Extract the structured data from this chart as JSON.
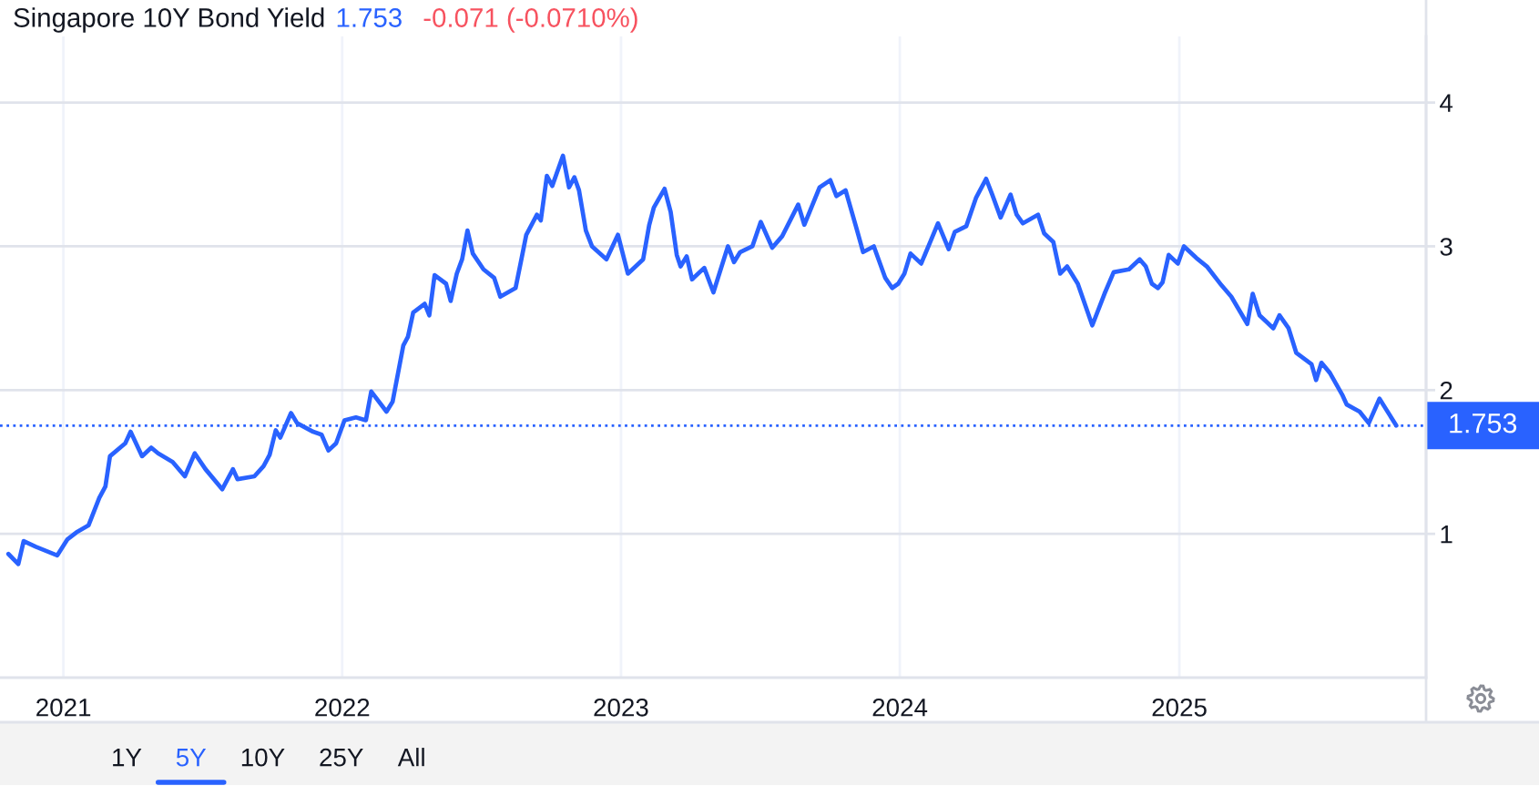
{
  "chart_data": {
    "type": "line",
    "title": "Singapore 10Y Bond Yield",
    "annotations": [
      "1.753",
      "-0.071 (-0.0710%)",
      "1Y",
      "5Y",
      "10Y",
      "25Y",
      "All"
    ],
    "x": [
      "2020-10-21",
      "2020-11-03",
      "2020-11-10",
      "2020-11-26",
      "2020-12-24",
      "2021-01-06",
      "2021-01-18",
      "2021-02-03",
      "2021-02-17",
      "2021-02-25",
      "2021-03-03",
      "2021-03-23",
      "2021-03-30",
      "2021-04-14",
      "2021-04-26",
      "2021-05-05",
      "2021-05-24",
      "2021-06-09",
      "2021-06-22",
      "2021-07-06",
      "2021-07-28",
      "2021-08-11",
      "2021-08-17",
      "2021-09-08",
      "2021-09-20",
      "2021-09-28",
      "2021-10-06",
      "2021-10-12",
      "2021-10-26",
      "2021-11-03",
      "2021-11-24",
      "2021-12-05",
      "2021-12-14",
      "2021-12-24",
      "2022-01-04",
      "2022-01-19",
      "2022-02-01",
      "2022-02-08",
      "2022-02-28",
      "2022-03-08",
      "2022-03-22",
      "2022-03-28",
      "2022-04-04",
      "2022-04-19",
      "2022-04-25",
      "2022-05-02",
      "2022-05-17",
      "2022-05-23",
      "2022-05-31",
      "2022-06-07",
      "2022-06-14",
      "2022-06-21",
      "2022-07-05",
      "2022-07-19",
      "2022-07-27",
      "2022-08-16",
      "2022-08-24",
      "2022-08-30",
      "2022-09-13",
      "2022-09-18",
      "2022-09-26",
      "2022-10-03",
      "2022-10-17",
      "2022-10-25",
      "2022-11-01",
      "2022-11-07",
      "2022-11-16",
      "2022-11-24",
      "2022-12-13",
      "2022-12-28",
      "2023-01-10",
      "2023-01-30",
      "2023-02-07",
      "2023-02-13",
      "2023-02-27",
      "2023-03-07",
      "2023-03-15",
      "2023-03-20",
      "2023-03-28",
      "2023-04-04",
      "2023-04-20",
      "2023-05-02",
      "2023-05-21",
      "2023-05-29",
      "2023-06-06",
      "2023-06-22",
      "2023-07-03",
      "2023-07-18",
      "2023-07-31",
      "2023-08-21",
      "2023-08-29",
      "2023-09-18",
      "2023-10-02",
      "2023-10-10",
      "2023-10-22",
      "2023-11-04",
      "2023-11-14",
      "2023-11-28",
      "2023-12-13",
      "2023-12-22",
      "2023-12-30",
      "2024-01-07",
      "2024-01-15",
      "2024-01-29",
      "2024-02-20",
      "2024-03-05",
      "2024-03-13",
      "2024-03-28",
      "2024-04-10",
      "2024-04-23",
      "2024-05-01",
      "2024-05-12",
      "2024-05-25",
      "2024-06-02",
      "2024-06-10",
      "2024-06-30",
      "2024-07-08",
      "2024-07-20",
      "2024-07-29",
      "2024-08-07",
      "2024-08-21",
      "2024-09-09",
      "2024-09-25",
      "2024-10-07",
      "2024-10-27",
      "2024-11-10",
      "2024-11-18",
      "2024-11-26",
      "2024-12-04",
      "2024-12-10",
      "2024-12-18",
      "2024-12-30",
      "2025-01-07",
      "2025-01-23",
      "2025-02-06",
      "2025-02-25",
      "2025-03-10",
      "2025-03-31",
      "2025-04-07",
      "2025-04-16",
      "2025-04-24",
      "2025-05-04",
      "2025-05-12",
      "2025-05-24",
      "2025-06-03",
      "2025-06-23",
      "2025-06-29",
      "2025-07-06",
      "2025-07-17",
      "2025-08-02",
      "2025-08-08",
      "2025-08-25",
      "2025-09-06",
      "2025-09-20",
      "2025-10-12"
    ],
    "series": [
      {
        "color": "#2962ff",
        "values": [
          0.86,
          0.79,
          0.95,
          0.91,
          0.85,
          0.96,
          1.01,
          1.06,
          1.25,
          1.33,
          1.54,
          1.63,
          1.71,
          1.54,
          1.6,
          1.56,
          1.5,
          1.4,
          1.56,
          1.45,
          1.31,
          1.45,
          1.38,
          1.4,
          1.47,
          1.55,
          1.72,
          1.67,
          1.84,
          1.77,
          1.71,
          1.69,
          1.58,
          1.63,
          1.79,
          1.81,
          1.79,
          1.99,
          1.85,
          1.92,
          2.31,
          2.37,
          2.54,
          2.6,
          2.52,
          2.8,
          2.74,
          2.62,
          2.81,
          2.91,
          3.11,
          2.95,
          2.84,
          2.78,
          2.65,
          2.71,
          2.92,
          3.08,
          3.22,
          3.18,
          3.49,
          3.42,
          3.63,
          3.41,
          3.48,
          3.39,
          3.11,
          3.0,
          2.91,
          3.08,
          2.81,
          2.91,
          3.15,
          3.27,
          3.4,
          3.24,
          2.94,
          2.86,
          2.93,
          2.77,
          2.85,
          2.68,
          3.0,
          2.89,
          2.96,
          3.0,
          3.17,
          2.99,
          3.07,
          3.29,
          3.15,
          3.41,
          3.46,
          3.35,
          3.39,
          3.15,
          2.96,
          3.0,
          2.78,
          2.71,
          2.74,
          2.81,
          2.95,
          2.88,
          3.16,
          2.98,
          3.1,
          3.14,
          3.34,
          3.47,
          3.36,
          3.2,
          3.36,
          3.22,
          3.16,
          3.22,
          3.09,
          3.03,
          2.81,
          2.86,
          2.74,
          2.45,
          2.67,
          2.82,
          2.84,
          2.91,
          2.86,
          2.74,
          2.71,
          2.75,
          2.94,
          2.88,
          3.0,
          2.92,
          2.86,
          2.73,
          2.65,
          2.46,
          2.67,
          2.52,
          2.48,
          2.43,
          2.52,
          2.43,
          2.26,
          2.18,
          2.07,
          2.19,
          2.12,
          1.97,
          1.9,
          1.85,
          1.77,
          1.94,
          1.753
        ]
      }
    ],
    "xlim": [
      "2020-10-10",
      "2025-11-20"
    ],
    "xticks": [
      "2021",
      "2022",
      "2023",
      "2024",
      "2025"
    ],
    "ylim": [
      0,
      4.46
    ],
    "yticks": [
      1,
      2,
      3,
      4
    ],
    "ref_lines": [
      {
        "axis": "y",
        "value": 1.753,
        "label": "1.753",
        "color": "#2962ff",
        "line_style": "dotted"
      }
    ],
    "grid": true
  }
}
